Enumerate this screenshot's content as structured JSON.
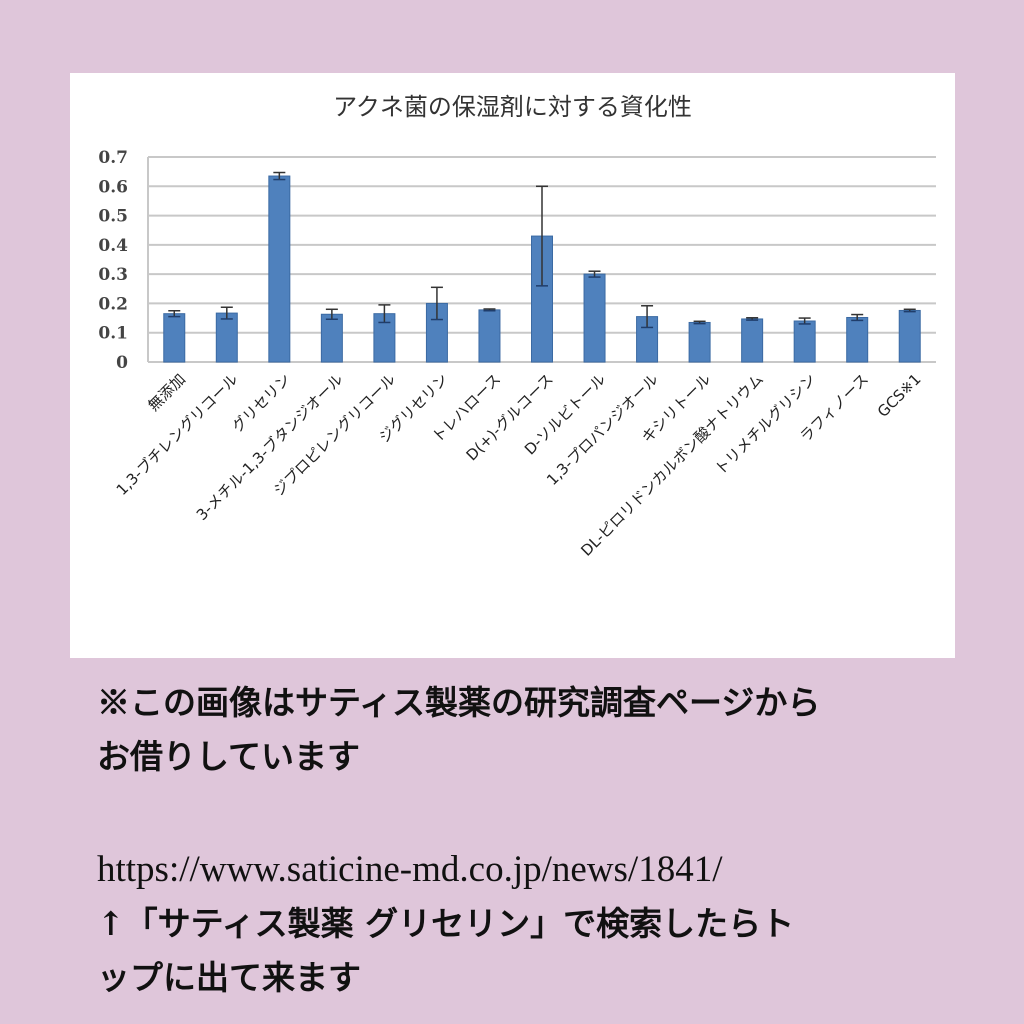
{
  "page": {
    "background_color": "#dfc6da",
    "card_color": "#ffffff"
  },
  "chart": {
    "title": "アクネ菌の保湿剤に対する資化性",
    "bar_color": "#4f81bd",
    "grid_color": "#c8c8c8",
    "y_ticks": [
      "0",
      "0.1",
      "0.2",
      "0.3",
      "0.4",
      "0.5",
      "0.6",
      "0.7"
    ]
  },
  "chart_data": {
    "type": "bar",
    "title": "アクネ菌の保湿剤に対する資化性",
    "xlabel": "",
    "ylabel": "",
    "ylim": [
      0,
      0.7
    ],
    "grid": true,
    "legend": null,
    "categories": [
      "無添加",
      "1,3-ブチレングリコール",
      "グリセリン",
      "3-メチル-1,3-ブタンジオール",
      "ジプロピレングリコール",
      "ジグリセリン",
      "トレハロース",
      "D(+)-グルコース",
      "D-ソルビトール",
      "1,3-プロパンジオール",
      "キシリトール",
      "DL-ピロリドンカルボン酸ナトリウム",
      "トリメチルグリシン",
      "ラフィノース",
      "GCS※1"
    ],
    "values": [
      0.165,
      0.167,
      0.635,
      0.163,
      0.165,
      0.2,
      0.178,
      0.43,
      0.3,
      0.155,
      0.135,
      0.147,
      0.14,
      0.152,
      0.176
    ],
    "error": [
      0.01,
      0.02,
      0.012,
      0.017,
      0.03,
      0.055,
      0.003,
      0.17,
      0.01,
      0.037,
      0.004,
      0.004,
      0.01,
      0.01,
      0.004
    ]
  },
  "caption": {
    "line1": "※この画像はサティス製薬の研究調査ページから",
    "line2": "お借りしています",
    "url": "https://www.saticine-md.co.jp/news/1841/",
    "line3": "↑「サティス製薬 グリセリン」で検索したらト",
    "line4": "ップに出て来ます"
  }
}
